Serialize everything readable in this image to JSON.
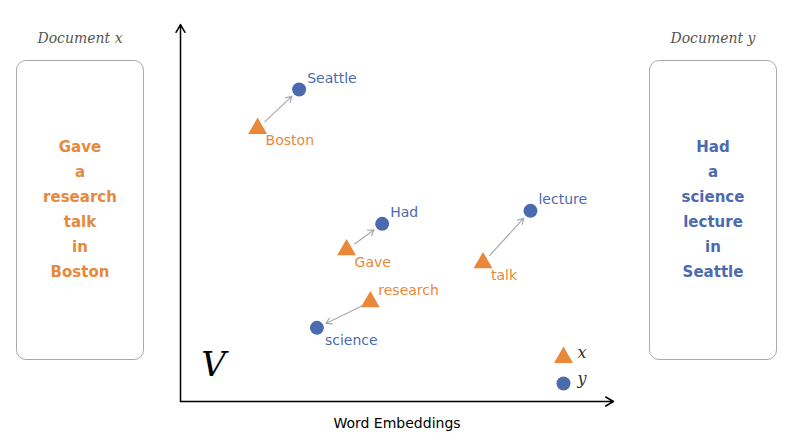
{
  "chart_data": {
    "type": "scatter",
    "xlabel": "Word Embeddings",
    "xlim": [
      1.5,
      8.8
    ],
    "ylim": [
      1.5,
      10.2
    ],
    "tick_labels": false,
    "grid": false,
    "legend": "lower right",
    "series": [
      {
        "name": "x",
        "color": "#E8883A",
        "marker": "triangle",
        "x": [
          2.8,
          4.3,
          4.7,
          6.6
        ],
        "values": [
          7.8,
          5.0,
          3.8,
          4.7
        ],
        "labels": [
          "Boston",
          "Gave",
          "research",
          "talk"
        ]
      },
      {
        "name": "y",
        "color": "#4B6BAE",
        "marker": "circle",
        "x": [
          3.5,
          4.9,
          3.8,
          7.4
        ],
        "values": [
          8.7,
          5.6,
          3.2,
          5.9
        ],
        "labels": [
          "Seattle",
          "Had",
          "science",
          "lecture"
        ]
      }
    ],
    "arrows": [
      {
        "x1": 2.8,
        "y1": 7.8,
        "x2": 3.5,
        "y2": 8.7
      },
      {
        "x1": 4.3,
        "y1": 5.0,
        "x2": 4.9,
        "y2": 5.6
      },
      {
        "x1": 4.7,
        "y1": 3.8,
        "x2": 3.8,
        "y2": 3.2
      },
      {
        "x1": 6.6,
        "y1": 4.7,
        "x2": 7.4,
        "y2": 5.9
      }
    ],
    "annotations": [
      {
        "text": "V",
        "x": 1.85,
        "y": 2.1
      }
    ],
    "documents": [
      {
        "label": "Document x",
        "words": [
          "Gave",
          "a",
          "research",
          "talk",
          "in",
          "Boston"
        ]
      },
      {
        "label": "Document y",
        "words": [
          "Had",
          "a",
          "science",
          "lecture",
          "in",
          "Seattle"
        ]
      }
    ]
  }
}
